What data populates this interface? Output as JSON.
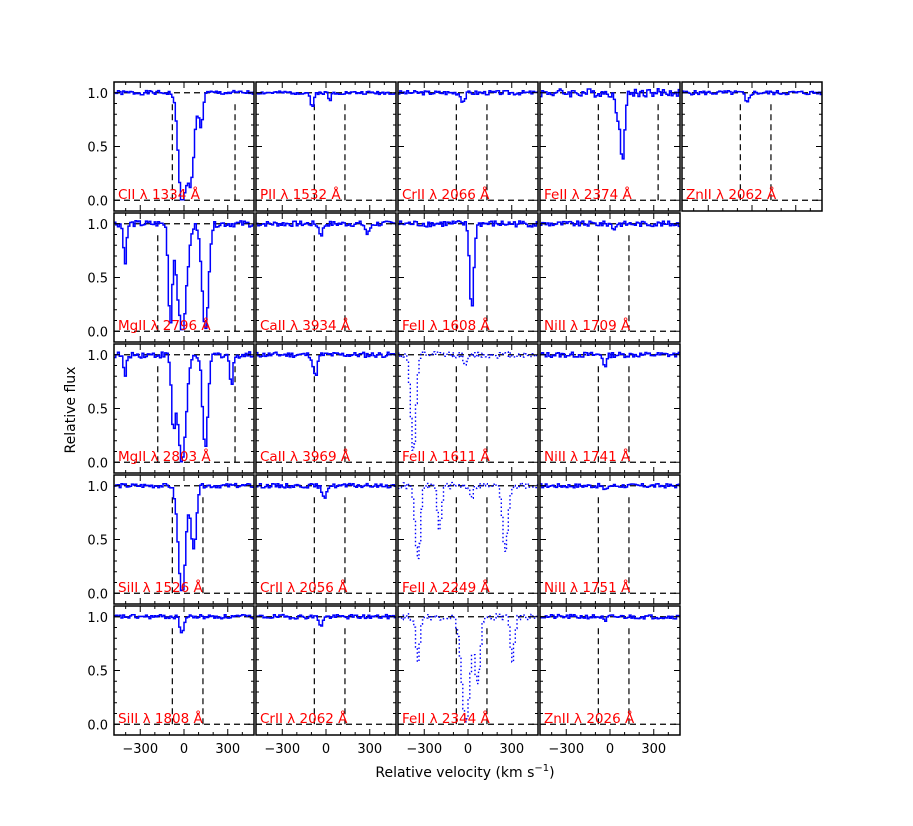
{
  "figure": {
    "xlabel": "Relative velocity (km s$^{-1}$)",
    "xlabel_text": "Relative velocity (km s",
    "xlabel_sup": "−1",
    "xlabel_close": ")",
    "ylabel": "Relative flux",
    "x_tick_labels": [
      "−300",
      "0",
      "300"
    ],
    "y_tick_labels": [
      "0.0",
      "0.5",
      "1.0"
    ]
  },
  "colors": {
    "spectrum": "#0000ff",
    "label": "#ff0000",
    "marker_lines": "#000000",
    "axes": "#000000"
  },
  "chart_data": {
    "type": "line",
    "description_of_grid": "5 rows x 5 columns of spectral absorption panels; panel (row 1, col 5) present only in row 1",
    "xlim": [
      -480,
      480
    ],
    "ylim": [
      -0.1,
      1.1
    ],
    "xticks": [
      -300,
      0,
      300
    ],
    "yticks": [
      0.0,
      0.5,
      1.0
    ],
    "grid": false,
    "panels": [
      {
        "row": 0,
        "col": 0,
        "ion": "CII",
        "lambda": "1334",
        "label": "CII λ 1334 Å",
        "style": "solid",
        "vlines": [
          -80,
          350
        ],
        "features": [
          {
            "v": -20,
            "depth": 1.0,
            "width": 35
          },
          {
            "v": 40,
            "depth": 0.8,
            "width": 35
          },
          {
            "v": 110,
            "depth": 0.3,
            "width": 20
          }
        ],
        "noise": 0.02,
        "seed": 1
      },
      {
        "row": 0,
        "col": 1,
        "ion": "PII",
        "lambda": "1532",
        "label": "PII λ 1532 Å",
        "style": "solid",
        "vlines": [
          -80,
          130
        ],
        "features": [
          {
            "v": -100,
            "depth": 0.15,
            "width": 15
          },
          {
            "v": 20,
            "depth": 0.08,
            "width": 12
          }
        ],
        "noise": 0.015,
        "seed": 2
      },
      {
        "row": 0,
        "col": 2,
        "ion": "CrII",
        "lambda": "2066",
        "label": "CrII λ 2066 Å",
        "style": "solid",
        "vlines": [
          -80,
          130
        ],
        "features": [
          {
            "v": -40,
            "depth": 0.08,
            "width": 20
          }
        ],
        "noise": 0.02,
        "seed": 3
      },
      {
        "row": 0,
        "col": 3,
        "ion": "FeII",
        "lambda": "2374",
        "label": "FeII λ 2374 Å",
        "style": "solid",
        "vlines": [
          -80,
          330
        ],
        "features": [
          {
            "v": 80,
            "depth": 0.6,
            "width": 22
          },
          {
            "v": 40,
            "depth": 0.2,
            "width": 18
          }
        ],
        "noise": 0.04,
        "seed": 4
      },
      {
        "row": 0,
        "col": 4,
        "ion": "ZnII",
        "lambda": "2062",
        "label": "ZnII λ 2062 Å",
        "style": "solid",
        "vlines": [
          -80,
          130
        ],
        "features": [
          {
            "v": -40,
            "depth": 0.1,
            "width": 18
          }
        ],
        "noise": 0.02,
        "seed": 5
      },
      {
        "row": 1,
        "col": 0,
        "ion": "MgII",
        "lambda": "2796",
        "label": "MgII λ 2796 Å",
        "style": "solid",
        "vlines": [
          -180,
          350
        ],
        "features": [
          {
            "v": -100,
            "depth": 0.9,
            "width": 18
          },
          {
            "v": -20,
            "depth": 1.0,
            "width": 45
          },
          {
            "v": 140,
            "depth": 1.0,
            "width": 30
          },
          {
            "v": -410,
            "depth": 0.35,
            "width": 15
          }
        ],
        "noise": 0.03,
        "seed": 6
      },
      {
        "row": 1,
        "col": 1,
        "ion": "CaII",
        "lambda": "3934",
        "label": "CaII λ 3934 Å",
        "style": "solid",
        "vlines": [
          -80,
          130
        ],
        "features": [
          {
            "v": -40,
            "depth": 0.1,
            "width": 20
          },
          {
            "v": 280,
            "depth": 0.1,
            "width": 20
          }
        ],
        "noise": 0.025,
        "seed": 7
      },
      {
        "row": 1,
        "col": 2,
        "ion": "FeII",
        "lambda": "1608",
        "label": "FeII λ 1608 Å",
        "style": "solid",
        "vlines": [
          -80,
          130
        ],
        "features": [
          {
            "v": 20,
            "depth": 0.8,
            "width": 20
          }
        ],
        "noise": 0.03,
        "seed": 8
      },
      {
        "row": 1,
        "col": 3,
        "ion": "NiII",
        "lambda": "1709",
        "label": "NiII λ 1709 Å",
        "style": "solid",
        "vlines": [
          -80,
          130
        ],
        "features": [
          {
            "v": 20,
            "depth": 0.05,
            "width": 15
          }
        ],
        "noise": 0.025,
        "seed": 9
      },
      {
        "row": 2,
        "col": 0,
        "ion": "MgII",
        "lambda": "2803",
        "label": "MgII λ 2803 Å",
        "style": "solid",
        "vlines": [
          -180,
          350
        ],
        "features": [
          {
            "v": -80,
            "depth": 0.6,
            "width": 18
          },
          {
            "v": -20,
            "depth": 1.0,
            "width": 40
          },
          {
            "v": 140,
            "depth": 0.9,
            "width": 25
          },
          {
            "v": -410,
            "depth": 0.2,
            "width": 15
          },
          {
            "v": 320,
            "depth": 0.3,
            "width": 15
          }
        ],
        "noise": 0.03,
        "seed": 10
      },
      {
        "row": 2,
        "col": 1,
        "ion": "CaII",
        "lambda": "3969",
        "label": "CaII λ 3969 Å",
        "style": "solid",
        "vlines": [
          -80,
          130
        ],
        "features": [
          {
            "v": -80,
            "depth": 0.2,
            "width": 20
          }
        ],
        "noise": 0.025,
        "seed": 11
      },
      {
        "row": 2,
        "col": 2,
        "ion": "FeII",
        "lambda": "1611",
        "label": "FeII λ 1611 Å",
        "style": "dotted",
        "vlines": [
          -80,
          130
        ],
        "features": [
          {
            "v": -380,
            "depth": 0.9,
            "width": 25
          },
          {
            "v": -20,
            "depth": 0.1,
            "width": 20
          }
        ],
        "noise": 0.03,
        "seed": 12
      },
      {
        "row": 2,
        "col": 3,
        "ion": "NiII",
        "lambda": "1741",
        "label": "NiII λ 1741 Å",
        "style": "solid",
        "vlines": [
          -80,
          130
        ],
        "features": [
          {
            "v": -40,
            "depth": 0.1,
            "width": 18
          }
        ],
        "noise": 0.025,
        "seed": 13
      },
      {
        "row": 3,
        "col": 0,
        "ion": "SiII",
        "lambda": "1526",
        "label": "SiII λ 1526 Å",
        "style": "solid",
        "vlines": [
          -80,
          130
        ],
        "features": [
          {
            "v": -20,
            "depth": 1.0,
            "width": 35
          },
          {
            "v": 60,
            "depth": 0.6,
            "width": 25
          }
        ],
        "noise": 0.02,
        "seed": 14
      },
      {
        "row": 3,
        "col": 1,
        "ion": "CrII",
        "lambda": "2056",
        "label": "CrII λ 2056 Å",
        "style": "solid",
        "vlines": [
          -80,
          130
        ],
        "features": [
          {
            "v": -20,
            "depth": 0.12,
            "width": 20
          }
        ],
        "noise": 0.02,
        "seed": 15
      },
      {
        "row": 3,
        "col": 2,
        "ion": "FeII",
        "lambda": "2249",
        "label": "FeII λ 2249 Å",
        "style": "dotted",
        "vlines": [
          -80,
          130
        ],
        "features": [
          {
            "v": -350,
            "depth": 0.7,
            "width": 25
          },
          {
            "v": -200,
            "depth": 0.4,
            "width": 20
          },
          {
            "v": 250,
            "depth": 0.6,
            "width": 25
          },
          {
            "v": 20,
            "depth": 0.1,
            "width": 15
          }
        ],
        "noise": 0.03,
        "seed": 16
      },
      {
        "row": 3,
        "col": 3,
        "ion": "NiII",
        "lambda": "1751",
        "label": "NiII λ 1751 Å",
        "style": "solid",
        "vlines": [
          -80,
          130
        ],
        "features": [
          {
            "v": -40,
            "depth": 0.05,
            "width": 15
          }
        ],
        "noise": 0.02,
        "seed": 17
      },
      {
        "row": 4,
        "col": 0,
        "ion": "SiII",
        "lambda": "1808",
        "label": "SiII λ 1808 Å",
        "style": "solid",
        "vlines": [
          -80,
          130
        ],
        "features": [
          {
            "v": -20,
            "depth": 0.15,
            "width": 20
          }
        ],
        "noise": 0.02,
        "seed": 18
      },
      {
        "row": 4,
        "col": 1,
        "ion": "CrII",
        "lambda": "2062",
        "label": "CrII λ 2062 Å",
        "style": "solid",
        "vlines": [
          -80,
          130
        ],
        "features": [
          {
            "v": -40,
            "depth": 0.08,
            "width": 18
          }
        ],
        "noise": 0.02,
        "seed": 19
      },
      {
        "row": 4,
        "col": 2,
        "ion": "FeII",
        "lambda": "2344",
        "label": "FeII λ 2344 Å",
        "style": "dotted",
        "vlines": [
          -80,
          130
        ],
        "features": [
          {
            "v": -20,
            "depth": 1.0,
            "width": 40
          },
          {
            "v": 60,
            "depth": 0.6,
            "width": 25
          },
          {
            "v": -350,
            "depth": 0.4,
            "width": 20
          },
          {
            "v": 300,
            "depth": 0.4,
            "width": 20
          }
        ],
        "noise": 0.03,
        "seed": 20
      },
      {
        "row": 4,
        "col": 3,
        "ion": "ZnII",
        "lambda": "2026",
        "label": "ZnII λ 2026 Å",
        "style": "solid",
        "vlines": [
          -80,
          130
        ],
        "features": [
          {
            "v": -40,
            "depth": 0.05,
            "width": 15
          }
        ],
        "noise": 0.02,
        "seed": 21
      }
    ]
  }
}
